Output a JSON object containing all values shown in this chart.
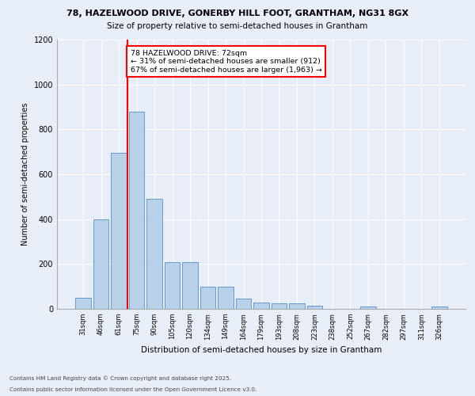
{
  "title_line1": "78, HAZELWOOD DRIVE, GONERBY HILL FOOT, GRANTHAM, NG31 8GX",
  "title_line2": "Size of property relative to semi-detached houses in Grantham",
  "xlabel": "Distribution of semi-detached houses by size in Grantham",
  "ylabel": "Number of semi-detached properties",
  "categories": [
    "31sqm",
    "46sqm",
    "61sqm",
    "75sqm",
    "90sqm",
    "105sqm",
    "120sqm",
    "134sqm",
    "149sqm",
    "164sqm",
    "179sqm",
    "193sqm",
    "208sqm",
    "223sqm",
    "238sqm",
    "252sqm",
    "267sqm",
    "282sqm",
    "297sqm",
    "311sqm",
    "326sqm"
  ],
  "values": [
    50,
    400,
    695,
    880,
    490,
    210,
    210,
    100,
    100,
    45,
    30,
    25,
    25,
    15,
    0,
    0,
    10,
    0,
    0,
    0,
    10
  ],
  "bar_color": "#b8d0e8",
  "bar_edge_color": "#6699cc",
  "vline_x_index": 3,
  "vline_color": "red",
  "annotation_text": "78 HAZELWOOD DRIVE: 72sqm\n← 31% of semi-detached houses are smaller (912)\n67% of semi-detached houses are larger (1,963) →",
  "annotation_box_color": "white",
  "annotation_box_edge": "red",
  "ylim": [
    0,
    1200
  ],
  "yticks": [
    0,
    200,
    400,
    600,
    800,
    1000,
    1200
  ],
  "footer_line1": "Contains HM Land Registry data © Crown copyright and database right 2025.",
  "footer_line2": "Contains public sector information licensed under the Open Government Licence v3.0.",
  "bg_color": "#e8eef8",
  "plot_bg_color": "#e8eef8"
}
